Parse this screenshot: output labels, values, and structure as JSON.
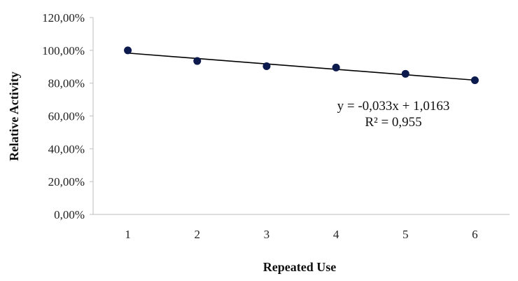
{
  "chart_data": {
    "type": "scatter",
    "xlabel": "Repeated Use",
    "ylabel": "Relative Activity",
    "x": [
      1,
      2,
      3,
      4,
      5,
      6
    ],
    "series": [
      {
        "values": [
          1.0,
          0.935,
          0.903,
          0.895,
          0.857,
          0.818
        ],
        "color": "#0d1a4d"
      }
    ],
    "ylim": [
      0,
      1.2
    ],
    "yticks": [
      0,
      0.2,
      0.4,
      0.6,
      0.8,
      1.0,
      1.2
    ],
    "ytick_labels": [
      "0,00%",
      "20,00%",
      "40,00%",
      "60,00%",
      "80,00%",
      "100,00%",
      "120,00%"
    ],
    "xtick_labels": [
      "1",
      "2",
      "3",
      "4",
      "5",
      "6"
    ],
    "trendline": {
      "type": "linear",
      "slope": -0.033,
      "intercept": 1.0163,
      "color": "#000000"
    },
    "equation_text": "y = -0,033x + 1,0163",
    "r2_text": "R² = 0,955",
    "grid": false,
    "legend": "none"
  }
}
